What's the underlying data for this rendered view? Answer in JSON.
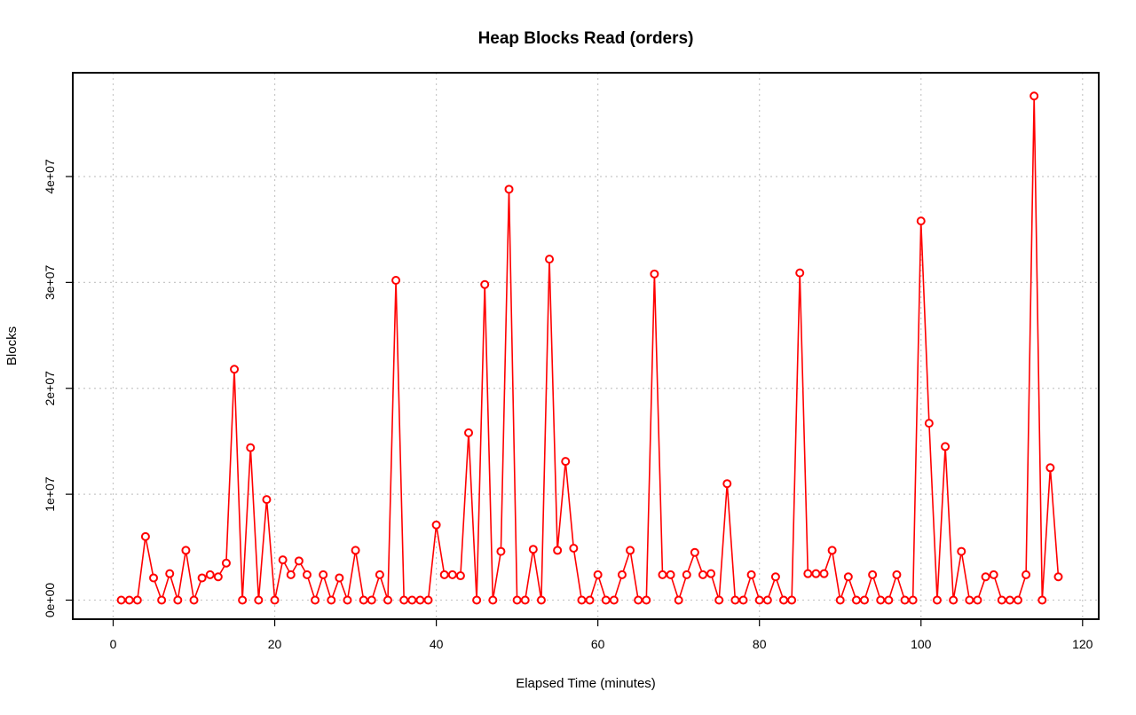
{
  "chart_data": {
    "type": "line",
    "title": "Heap Blocks Read (orders)",
    "xlabel": "Elapsed Time (minutes)",
    "ylabel": "Blocks",
    "xlim": [
      -5,
      122
    ],
    "ylim": [
      -1800000,
      49800000
    ],
    "xticks": [
      0,
      20,
      40,
      60,
      80,
      100,
      120
    ],
    "yticks": [
      0,
      10000000,
      20000000,
      30000000,
      40000000
    ],
    "xtick_labels": [
      "0",
      "20",
      "40",
      "60",
      "80",
      "100",
      "120"
    ],
    "ytick_labels": [
      "0e+00",
      "1e+07",
      "2e+07",
      "3e+07",
      "4e+07"
    ],
    "grid": true,
    "color": "#ff0000",
    "marker": "open-circle",
    "x": [
      1,
      2,
      3,
      4,
      5,
      6,
      7,
      8,
      9,
      10,
      11,
      12,
      13,
      14,
      15,
      16,
      17,
      18,
      19,
      20,
      21,
      22,
      23,
      24,
      25,
      26,
      27,
      28,
      29,
      30,
      31,
      32,
      33,
      34,
      35,
      36,
      37,
      38,
      39,
      40,
      41,
      42,
      43,
      44,
      45,
      46,
      47,
      48,
      49,
      50,
      51,
      52,
      53,
      54,
      55,
      56,
      57,
      58,
      59,
      60,
      61,
      62,
      63,
      64,
      65,
      66,
      67,
      68,
      69,
      70,
      71,
      72,
      73,
      74,
      75,
      76,
      77,
      78,
      79,
      80,
      81,
      82,
      83,
      84,
      85,
      86,
      87,
      88,
      89,
      90,
      91,
      92,
      93,
      94,
      95,
      96,
      97,
      98,
      99,
      100,
      101,
      102,
      103,
      104,
      105,
      106,
      107,
      108,
      109,
      110,
      111,
      112,
      113,
      114,
      115,
      116,
      117
    ],
    "y": [
      0,
      0,
      0,
      6000000,
      2100000,
      0,
      2500000,
      0,
      4700000,
      0,
      2100000,
      2400000,
      2200000,
      3500000,
      21800000,
      0,
      14400000,
      0,
      9500000,
      0,
      3800000,
      2400000,
      3700000,
      2400000,
      0,
      2400000,
      0,
      2100000,
      0,
      4700000,
      0,
      0,
      2400000,
      0,
      30200000,
      0,
      0,
      0,
      0,
      7100000,
      2400000,
      2400000,
      2300000,
      15800000,
      0,
      29800000,
      0,
      4600000,
      38800000,
      0,
      0,
      4800000,
      0,
      32200000,
      4700000,
      13100000,
      4900000,
      0,
      0,
      2400000,
      0,
      0,
      2400000,
      4700000,
      0,
      0,
      30800000,
      2400000,
      2400000,
      0,
      2400000,
      4500000,
      2400000,
      2500000,
      0,
      11000000,
      0,
      0,
      2400000,
      0,
      0,
      2200000,
      0,
      0,
      30900000,
      2500000,
      2500000,
      2500000,
      4700000,
      0,
      2200000,
      0,
      0,
      2400000,
      0,
      0,
      2400000,
      0,
      0,
      35800000,
      16700000,
      0,
      14500000,
      0,
      4600000,
      0,
      0,
      2200000,
      2400000,
      0,
      0,
      0,
      2400000,
      47600000,
      0,
      12500000,
      2200000
    ]
  }
}
